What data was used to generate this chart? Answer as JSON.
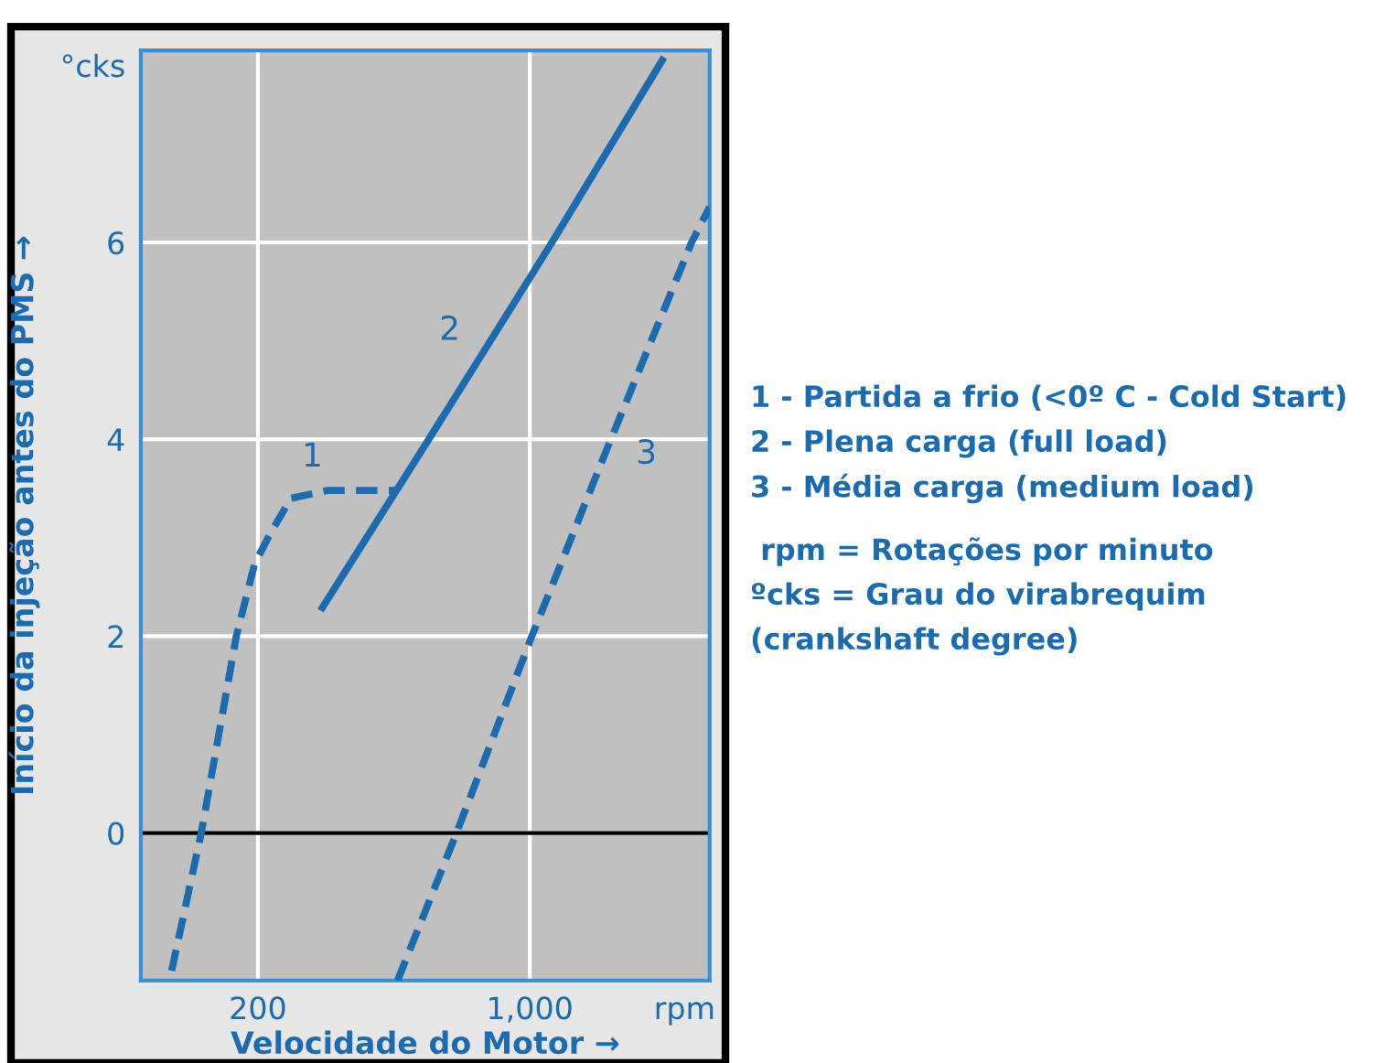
{
  "chart_data": {
    "type": "line",
    "xlabel": "Velocidade do Motor →",
    "ylabel": "Início da injeção antes do PMS →",
    "log": "x",
    "xlim": [
      100,
      2900
    ],
    "ylim": [
      -1.5,
      7.95
    ],
    "xticks": [
      200,
      {
        "value": 1000,
        "label": "1,000"
      },
      {
        "value": 2500,
        "label": "rpm"
      }
    ],
    "yticks": [
      0,
      2,
      4,
      6,
      {
        "value": 7.8,
        "label": "°cks"
      }
    ],
    "grid": true,
    "marker": "none",
    "ref_lines": [
      {
        "axis": "y",
        "value": 0,
        "color": "#000000"
      }
    ],
    "series": [
      {
        "name": "1",
        "color": "#1a6bb0",
        "line_style": "dashed",
        "x": [
          120,
          143,
          176,
          196,
          213,
          243,
          302,
          457
        ],
        "values": [
          -1.4,
          0,
          2,
          2.73,
          3.01,
          3.4,
          3.48,
          3.48
        ]
      },
      {
        "name": "2",
        "color": "#1a6bb0",
        "line_style": "solid",
        "x": [
          293,
          550,
          1140,
          2190
        ],
        "values": [
          2.29,
          4,
          6,
          7.85
        ]
      },
      {
        "name": "3",
        "color": "#1a6bb0",
        "line_style": "dashed",
        "x": [
          457,
          648,
          1012,
          1616,
          2606,
          2900
        ],
        "values": [
          -1.5,
          0,
          2,
          4,
          6,
          6.36
        ]
      }
    ],
    "annotations": [
      "1 - Partida a frio (<0º C - Cold Start)",
      "2 - Plena carga (full load)",
      "3 - Média carga (medium load)",
      " rpm = Rotações por minuto",
      "ºcks = Grau do virabrequim",
      "(crankshaft degree)"
    ]
  }
}
